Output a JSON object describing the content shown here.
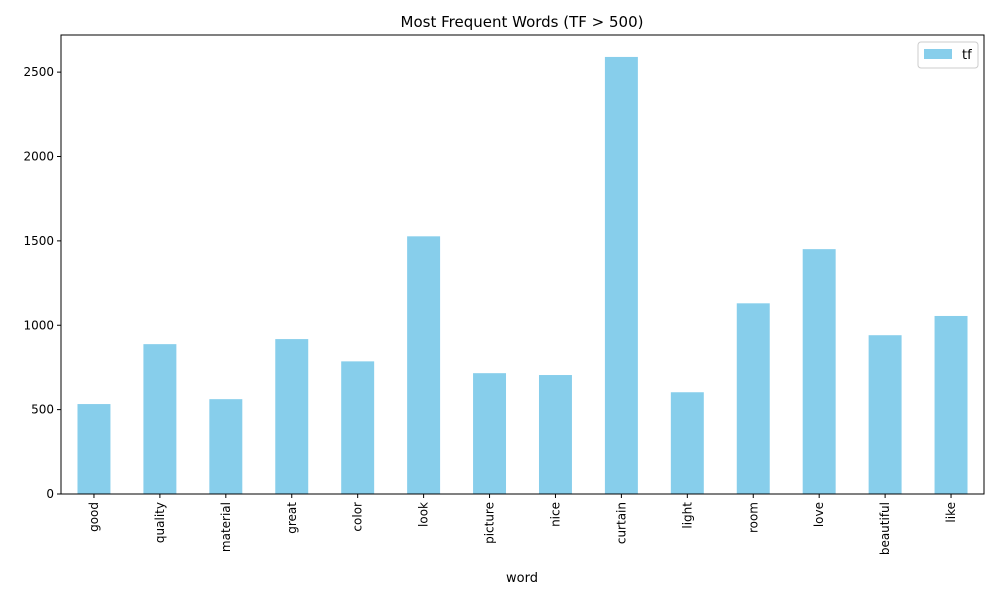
{
  "chart_data": {
    "type": "bar",
    "title": "Most Frequent Words (TF > 500)",
    "xlabel": "word",
    "ylabel": "",
    "categories": [
      "good",
      "quality",
      "material",
      "great",
      "color",
      "look",
      "picture",
      "nice",
      "curtain",
      "light",
      "room",
      "love",
      "beautiful",
      "like"
    ],
    "series": [
      {
        "name": "tf",
        "values": [
          533,
          888,
          562,
          918,
          786,
          1527,
          716,
          705,
          2590,
          603,
          1130,
          1451,
          941,
          1055
        ]
      }
    ],
    "ylim": [
      0,
      2720
    ],
    "yticks": [
      0,
      500,
      1000,
      1500,
      2000,
      2500
    ],
    "grid": false,
    "legend_position": "top-right",
    "bar_color": "#87ceeb"
  }
}
